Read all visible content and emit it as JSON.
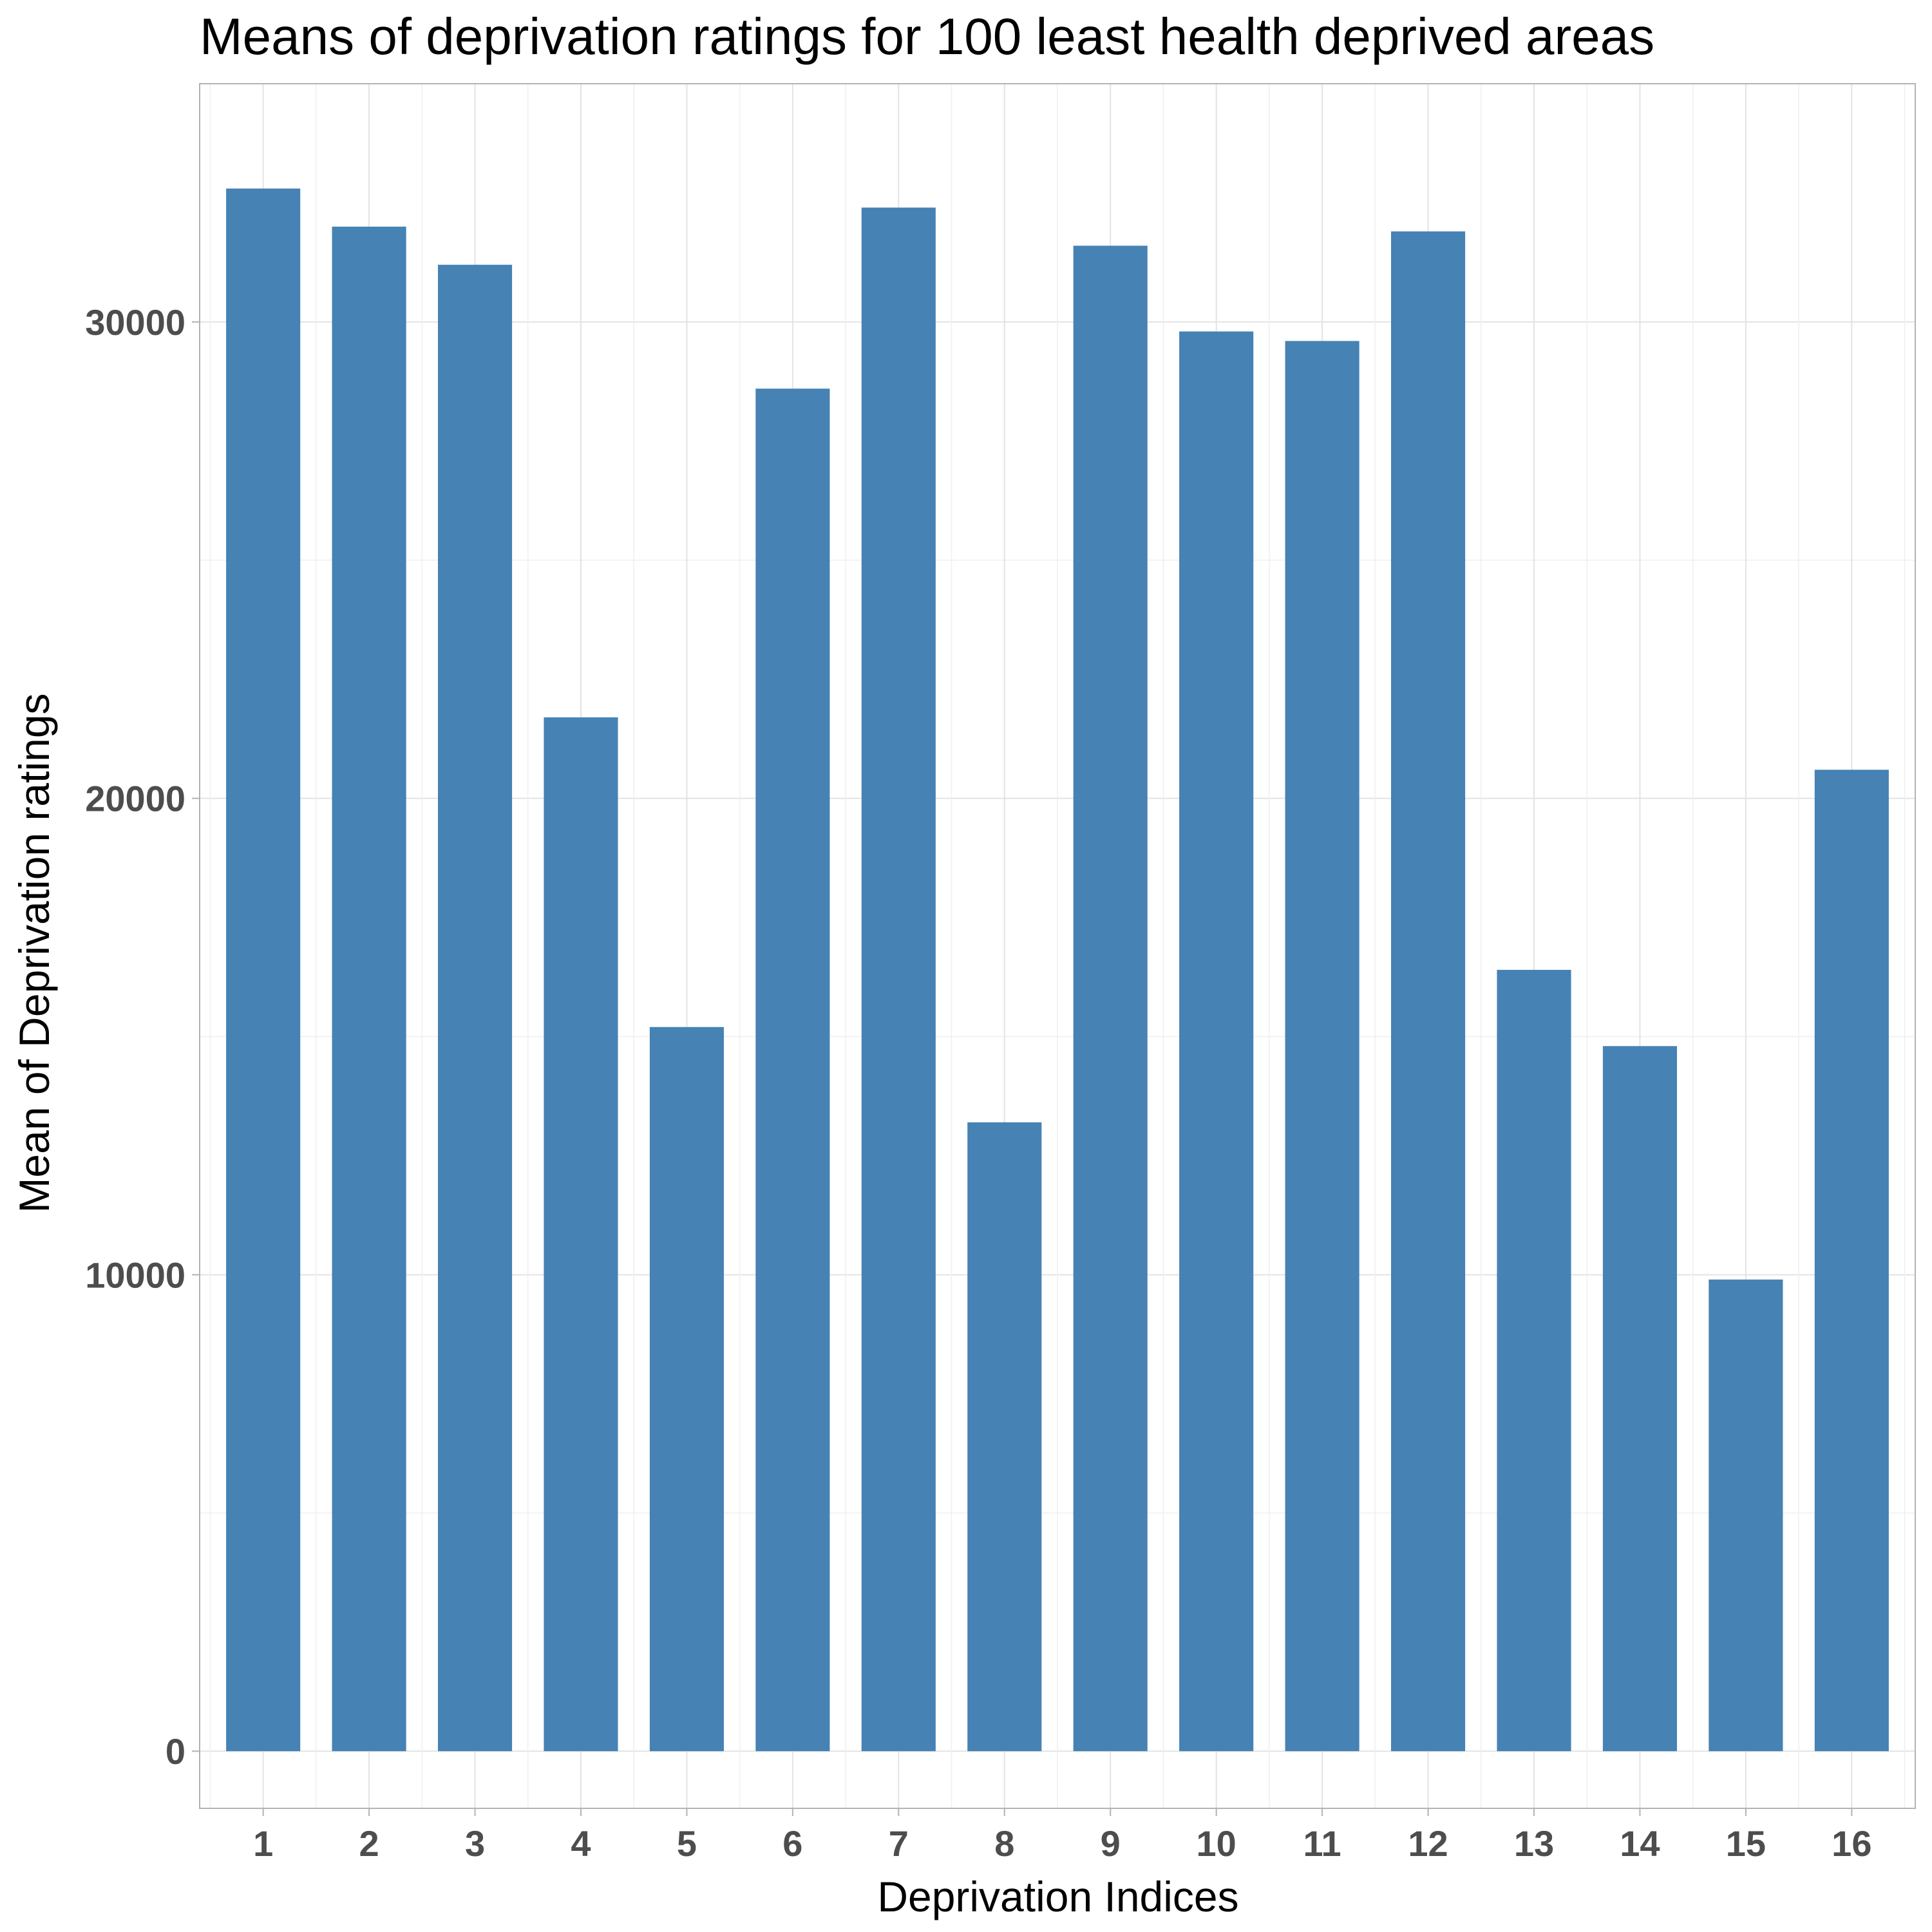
{
  "chart_data": {
    "type": "bar",
    "title": "Means of deprivation ratings for 100 least health deprived areas",
    "xlabel": "Deprivation Indices",
    "ylabel": "Mean of Deprivation ratings",
    "categories": [
      "1",
      "2",
      "3",
      "4",
      "5",
      "6",
      "7",
      "8",
      "9",
      "10",
      "11",
      "12",
      "13",
      "14",
      "15",
      "16"
    ],
    "values": [
      32800,
      32000,
      31200,
      21700,
      15200,
      28600,
      32400,
      13200,
      31600,
      29800,
      29600,
      31900,
      16400,
      14800,
      9900,
      20600
    ],
    "y_ticks": [
      "0",
      "10000",
      "20000",
      "30000"
    ],
    "ylim": [
      -1200,
      35000
    ],
    "grid": true,
    "bar_color": "#4682b4"
  }
}
